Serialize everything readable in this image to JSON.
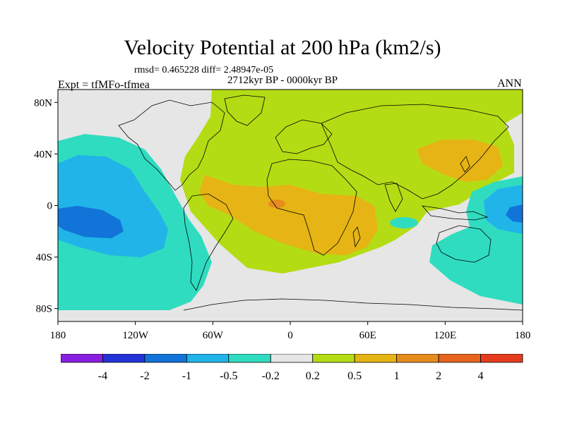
{
  "title": "Velocity Potential at 200 hPa (km2/s)",
  "stats": "rmsd= 0.465228 diff= 2.48947e-05",
  "period": "2712kyr BP - 0000kyr BP",
  "experiment": "Expt = tfMFo-tfmea",
  "season": "ANN",
  "map": {
    "lon_range": [
      -180,
      180
    ],
    "lat_range": [
      -90,
      90
    ],
    "lat_ticks": [
      {
        "value": 80,
        "label": "80N"
      },
      {
        "value": 40,
        "label": "40N"
      },
      {
        "value": 0,
        "label": "0"
      },
      {
        "value": -40,
        "label": "40S"
      },
      {
        "value": -80,
        "label": "80S"
      }
    ],
    "lon_ticks": [
      {
        "value": -180,
        "label": "180"
      },
      {
        "value": -120,
        "label": "120W"
      },
      {
        "value": -60,
        "label": "60W"
      },
      {
        "value": 0,
        "label": "0"
      },
      {
        "value": 60,
        "label": "60E"
      },
      {
        "value": 120,
        "label": "120E"
      },
      {
        "value": 180,
        "label": "180"
      }
    ]
  },
  "colorbar": {
    "colors": [
      "#8a1ee0",
      "#2433d8",
      "#1273d8",
      "#20b4e8",
      "#30dcc0",
      "#e6e6e6",
      "#b4dc14",
      "#e6b414",
      "#e68c1e",
      "#e6641e",
      "#e63c1e"
    ],
    "labels": [
      "-4",
      "-2",
      "-1",
      "-0.5",
      "-0.2",
      "0.2",
      "0.5",
      "1",
      "2",
      "4"
    ]
  }
}
